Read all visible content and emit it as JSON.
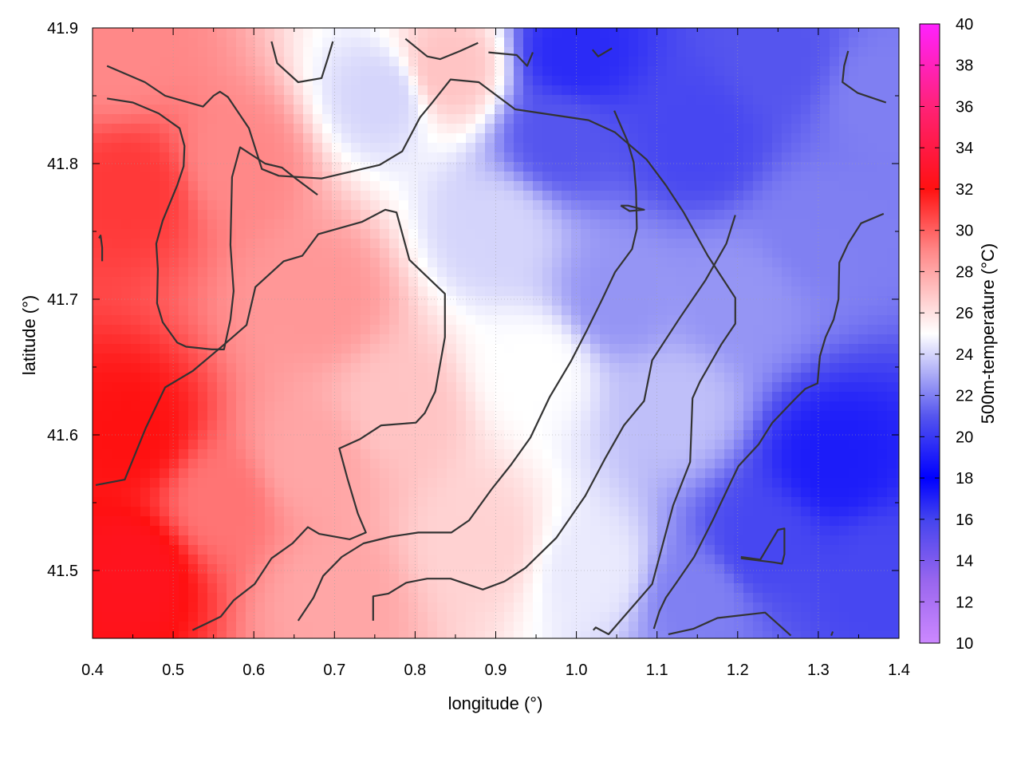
{
  "chart_data": {
    "type": "heatmap",
    "xlabel": "longitude (°)",
    "ylabel": "latitude (°)",
    "colorbar_label": "500m-temperature (°C)",
    "xlim": [
      0.4,
      1.4
    ],
    "ylim": [
      41.45,
      41.9
    ],
    "x_ticks": [
      0.4,
      0.5,
      0.6,
      0.7,
      0.8,
      0.9,
      1.0,
      1.1,
      1.2,
      1.3,
      1.4
    ],
    "y_ticks": [
      41.5,
      41.6,
      41.7,
      41.8,
      41.9
    ],
    "x_tick_labels": [
      "0.4",
      "0.5",
      "0.6",
      "0.7",
      "0.8",
      "0.9",
      "1.0",
      "1.1",
      "1.2",
      "1.3",
      "1.4"
    ],
    "y_tick_labels": [
      "41.5",
      "41.6",
      "41.7",
      "41.8",
      "41.9"
    ],
    "colorbar": {
      "range": [
        10,
        40
      ],
      "ticks": [
        10,
        12,
        14,
        16,
        18,
        20,
        22,
        24,
        26,
        28,
        30,
        32,
        34,
        36,
        38,
        40
      ],
      "tick_labels": [
        "10",
        "12",
        "14",
        "16",
        "18",
        "20",
        "22",
        "24",
        "26",
        "28",
        "30",
        "32",
        "34",
        "36",
        "38",
        "40"
      ],
      "stops": [
        {
          "value": 10,
          "color": "#cc88ff"
        },
        {
          "value": 13,
          "color": "#9966ee"
        },
        {
          "value": 16,
          "color": "#4444ee"
        },
        {
          "value": 18,
          "color": "#0000ff"
        },
        {
          "value": 21,
          "color": "#5555ee"
        },
        {
          "value": 25,
          "color": "#ffffff"
        },
        {
          "value": 29,
          "color": "#ff8888"
        },
        {
          "value": 32,
          "color": "#ff1111"
        },
        {
          "value": 36,
          "color": "#ff2277"
        },
        {
          "value": 40,
          "color": "#ff22ff"
        }
      ]
    },
    "grid": true,
    "field_anchors": [
      {
        "lon": 0.45,
        "lat": 41.6,
        "t": 32.0
      },
      {
        "lon": 0.45,
        "lat": 41.5,
        "t": 32.5
      },
      {
        "lon": 0.45,
        "lat": 41.78,
        "t": 31.0
      },
      {
        "lon": 0.43,
        "lat": 41.88,
        "t": 29.0
      },
      {
        "lon": 0.56,
        "lat": 41.55,
        "t": 29.5
      },
      {
        "lon": 0.58,
        "lat": 41.8,
        "t": 29.0
      },
      {
        "lon": 0.68,
        "lat": 41.7,
        "t": 28.5
      },
      {
        "lon": 0.67,
        "lat": 41.58,
        "t": 28.0
      },
      {
        "lon": 0.7,
        "lat": 41.48,
        "t": 28.0
      },
      {
        "lon": 0.76,
        "lat": 41.85,
        "t": 24.0
      },
      {
        "lon": 0.84,
        "lat": 41.87,
        "t": 27.0
      },
      {
        "lon": 0.78,
        "lat": 41.62,
        "t": 27.0
      },
      {
        "lon": 0.88,
        "lat": 41.52,
        "t": 26.5
      },
      {
        "lon": 0.9,
        "lat": 41.75,
        "t": 24.0
      },
      {
        "lon": 0.95,
        "lat": 41.65,
        "t": 25.0
      },
      {
        "lon": 0.98,
        "lat": 41.82,
        "t": 21.0
      },
      {
        "lon": 1.0,
        "lat": 41.88,
        "t": 19.5
      },
      {
        "lon": 1.05,
        "lat": 41.7,
        "t": 22.5
      },
      {
        "lon": 1.02,
        "lat": 41.5,
        "t": 24.5
      },
      {
        "lon": 1.12,
        "lat": 41.62,
        "t": 23.5
      },
      {
        "lon": 1.15,
        "lat": 41.82,
        "t": 20.5
      },
      {
        "lon": 1.2,
        "lat": 41.7,
        "t": 22.5
      },
      {
        "lon": 1.25,
        "lat": 41.88,
        "t": 21.0
      },
      {
        "lon": 1.3,
        "lat": 41.75,
        "t": 22.0
      },
      {
        "lon": 1.32,
        "lat": 41.58,
        "t": 19.0
      },
      {
        "lon": 1.23,
        "lat": 41.52,
        "t": 20.5
      },
      {
        "lon": 1.38,
        "lat": 41.5,
        "t": 20.5
      },
      {
        "lon": 1.38,
        "lat": 41.85,
        "t": 22.0
      },
      {
        "lon": 1.15,
        "lat": 41.48,
        "t": 22.0
      }
    ],
    "contours": [
      [
        [
          0.418,
          41.872
        ],
        [
          0.465,
          41.86
        ],
        [
          0.49,
          41.85
        ],
        [
          0.537,
          41.842
        ],
        [
          0.55,
          41.85
        ],
        [
          0.558,
          41.853
        ],
        [
          0.568,
          41.849
        ],
        [
          0.594,
          41.826
        ],
        [
          0.61,
          41.796
        ],
        [
          0.631,
          41.791
        ],
        [
          0.684,
          41.789
        ],
        [
          0.756,
          41.799
        ],
        [
          0.784,
          41.809
        ],
        [
          0.806,
          41.834
        ],
        [
          0.82,
          41.844
        ],
        [
          0.844,
          41.862
        ],
        [
          0.879,
          41.86
        ],
        [
          0.924,
          41.84
        ],
        [
          1.015,
          41.832
        ],
        [
          1.048,
          41.823
        ],
        [
          1.087,
          41.803
        ],
        [
          1.111,
          41.784
        ],
        [
          1.133,
          41.764
        ],
        [
          1.163,
          41.732
        ],
        [
          1.197,
          41.701
        ],
        [
          1.197,
          41.682
        ],
        [
          1.18,
          41.667
        ],
        [
          1.153,
          41.639
        ],
        [
          1.144,
          41.627
        ],
        [
          1.141,
          41.58
        ],
        [
          1.12,
          41.548
        ],
        [
          1.094,
          41.49
        ],
        [
          1.04,
          41.453
        ],
        [
          1.024,
          41.458
        ],
        [
          1.021,
          41.456
        ]
      ],
      [
        [
          0.418,
          41.848
        ],
        [
          0.45,
          41.845
        ],
        [
          0.482,
          41.837
        ],
        [
          0.508,
          41.826
        ],
        [
          0.514,
          41.813
        ],
        [
          0.513,
          41.798
        ],
        [
          0.505,
          41.784
        ],
        [
          0.487,
          41.758
        ],
        [
          0.479,
          41.741
        ],
        [
          0.481,
          41.722
        ],
        [
          0.48,
          41.697
        ],
        [
          0.487,
          41.683
        ],
        [
          0.505,
          41.668
        ],
        [
          0.516,
          41.665
        ],
        [
          0.548,
          41.663
        ],
        [
          0.563,
          41.663
        ],
        [
          0.571,
          41.685
        ],
        [
          0.575,
          41.706
        ],
        [
          0.571,
          41.74
        ],
        [
          0.573,
          41.79
        ],
        [
          0.583,
          41.812
        ],
        [
          0.614,
          41.8
        ],
        [
          0.635,
          41.797
        ],
        [
          0.652,
          41.789
        ],
        [
          0.679,
          41.777
        ]
      ],
      [
        [
          0.408,
          41.745
        ],
        [
          0.41,
          41.747
        ],
        [
          0.412,
          41.738
        ],
        [
          0.412,
          41.728
        ]
      ],
      [
        [
          0.404,
          41.563
        ],
        [
          0.44,
          41.567
        ],
        [
          0.466,
          41.605
        ],
        [
          0.49,
          41.635
        ],
        [
          0.524,
          41.647
        ],
        [
          0.562,
          41.666
        ],
        [
          0.591,
          41.681
        ],
        [
          0.602,
          41.709
        ],
        [
          0.637,
          41.728
        ],
        [
          0.66,
          41.732
        ],
        [
          0.68,
          41.748
        ],
        [
          0.734,
          41.757
        ],
        [
          0.763,
          41.766
        ],
        [
          0.777,
          41.764
        ],
        [
          0.793,
          41.729
        ],
        [
          0.837,
          41.704
        ],
        [
          0.837,
          41.672
        ],
        [
          0.825,
          41.632
        ],
        [
          0.812,
          41.616
        ],
        [
          0.801,
          41.609
        ],
        [
          0.758,
          41.607
        ],
        [
          0.732,
          41.597
        ],
        [
          0.706,
          41.59
        ],
        [
          0.716,
          41.568
        ],
        [
          0.729,
          41.542
        ],
        [
          0.739,
          41.528
        ],
        [
          0.719,
          41.523
        ],
        [
          0.681,
          41.527
        ],
        [
          0.667,
          41.532
        ],
        [
          0.648,
          41.52
        ],
        [
          0.622,
          41.509
        ],
        [
          0.601,
          41.49
        ],
        [
          0.575,
          41.478
        ],
        [
          0.559,
          41.466
        ],
        [
          0.524,
          41.456
        ]
      ],
      [
        [
          0.655,
          41.463
        ],
        [
          0.674,
          41.48
        ],
        [
          0.686,
          41.496
        ],
        [
          0.709,
          41.51
        ],
        [
          0.736,
          41.52
        ],
        [
          0.77,
          41.525
        ],
        [
          0.804,
          41.528
        ],
        [
          0.845,
          41.528
        ],
        [
          0.867,
          41.537
        ],
        [
          0.895,
          41.56
        ],
        [
          0.919,
          41.578
        ],
        [
          0.943,
          41.598
        ],
        [
          0.967,
          41.628
        ],
        [
          0.993,
          41.654
        ],
        [
          1.013,
          41.677
        ],
        [
          1.032,
          41.7
        ],
        [
          1.048,
          41.72
        ],
        [
          1.069,
          41.737
        ],
        [
          1.075,
          41.752
        ],
        [
          1.074,
          41.78
        ],
        [
          1.071,
          41.801
        ],
        [
          1.063,
          41.817
        ],
        [
          1.047,
          41.839
        ]
      ],
      [
        [
          0.748,
          41.463
        ],
        [
          0.748,
          41.481
        ],
        [
          0.767,
          41.483
        ],
        [
          0.789,
          41.491
        ],
        [
          0.815,
          41.494
        ],
        [
          0.844,
          41.494
        ],
        [
          0.884,
          41.486
        ],
        [
          0.911,
          41.492
        ],
        [
          0.937,
          41.502
        ],
        [
          0.975,
          41.524
        ],
        [
          1.011,
          41.555
        ],
        [
          1.036,
          41.583
        ],
        [
          1.059,
          41.607
        ],
        [
          1.084,
          41.625
        ],
        [
          1.094,
          41.655
        ],
        [
          1.128,
          41.686
        ],
        [
          1.16,
          41.714
        ],
        [
          1.186,
          41.741
        ],
        [
          1.197,
          41.762
        ]
      ],
      [
        [
          0.622,
          41.89
        ],
        [
          0.629,
          41.874
        ],
        [
          0.655,
          41.86
        ],
        [
          0.684,
          41.863
        ],
        [
          0.692,
          41.878
        ],
        [
          0.698,
          41.89
        ]
      ],
      [
        [
          0.878,
          41.889
        ],
        [
          0.856,
          41.883
        ],
        [
          0.831,
          41.877
        ],
        [
          0.815,
          41.879
        ],
        [
          0.788,
          41.892
        ]
      ],
      [
        [
          0.891,
          41.882
        ],
        [
          0.926,
          41.88
        ],
        [
          0.939,
          41.872
        ],
        [
          0.946,
          41.882
        ]
      ],
      [
        [
          1.02,
          41.884
        ],
        [
          1.027,
          41.879
        ],
        [
          1.044,
          41.885
        ]
      ],
      [
        [
          1.055,
          41.769
        ],
        [
          1.066,
          41.765
        ],
        [
          1.084,
          41.766
        ],
        [
          1.064,
          41.769
        ],
        [
          1.055,
          41.769
        ]
      ],
      [
        [
          1.114,
          41.453
        ],
        [
          1.145,
          41.457
        ],
        [
          1.175,
          41.465
        ],
        [
          1.234,
          41.469
        ],
        [
          1.266,
          41.452
        ]
      ],
      [
        [
          1.204,
          41.509
        ],
        [
          1.245,
          41.506
        ],
        [
          1.255,
          41.505
        ],
        [
          1.258,
          41.512
        ],
        [
          1.258,
          41.531
        ],
        [
          1.25,
          41.53
        ],
        [
          1.228,
          41.508
        ],
        [
          1.204,
          41.51
        ]
      ],
      [
        [
          1.381,
          41.763
        ],
        [
          1.353,
          41.756
        ],
        [
          1.337,
          41.741
        ],
        [
          1.326,
          41.727
        ],
        [
          1.325,
          41.7
        ],
        [
          1.319,
          41.685
        ],
        [
          1.309,
          41.672
        ],
        [
          1.302,
          41.658
        ],
        [
          1.299,
          41.638
        ],
        [
          1.284,
          41.634
        ],
        [
          1.272,
          41.627
        ],
        [
          1.243,
          41.609
        ],
        [
          1.226,
          41.593
        ],
        [
          1.201,
          41.577
        ],
        [
          1.185,
          41.557
        ],
        [
          1.169,
          41.537
        ],
        [
          1.146,
          41.51
        ],
        [
          1.124,
          41.491
        ],
        [
          1.111,
          41.48
        ],
        [
          1.103,
          41.47
        ],
        [
          1.096,
          41.457
        ]
      ],
      [
        [
          1.337,
          41.883
        ],
        [
          1.332,
          41.872
        ],
        [
          1.33,
          41.86
        ],
        [
          1.349,
          41.852
        ],
        [
          1.384,
          41.845
        ]
      ],
      [
        [
          1.316,
          41.452
        ],
        [
          1.318,
          41.455
        ]
      ]
    ]
  }
}
